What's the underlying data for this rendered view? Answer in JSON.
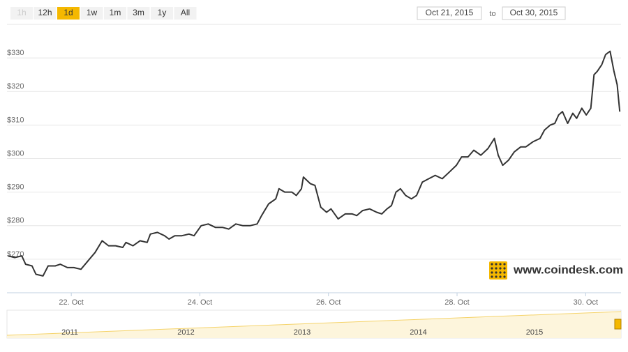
{
  "range_selector": {
    "buttons": [
      "1h",
      "12h",
      "1d",
      "1w",
      "1m",
      "3m",
      "1y",
      "All"
    ],
    "active": "1d",
    "from": "Oct 21, 2015",
    "to_label": "to",
    "to": "Oct 30, 2015"
  },
  "watermark": "www.coindesk.com",
  "navigator": {
    "labels": [
      "2011",
      "2012",
      "2013",
      "2014",
      "2015"
    ]
  },
  "chart_data": {
    "type": "line",
    "color": "#333333",
    "grid": true,
    "xlim": [
      21,
      30.55
    ],
    "ylim": [
      260,
      340
    ],
    "xticks": [
      {
        "value": 22,
        "label": "22. Oct"
      },
      {
        "value": 24,
        "label": "24. Oct"
      },
      {
        "value": 26,
        "label": "26. Oct"
      },
      {
        "value": 28,
        "label": "28. Oct"
      },
      {
        "value": 30,
        "label": "30. Oct"
      }
    ],
    "yticks": [
      {
        "value": 270,
        "label": "$270"
      },
      {
        "value": 280,
        "label": "$280"
      },
      {
        "value": 290,
        "label": "$290"
      },
      {
        "value": 300,
        "label": "$300"
      },
      {
        "value": 310,
        "label": "$310"
      },
      {
        "value": 320,
        "label": "$320"
      },
      {
        "value": 330,
        "label": "$330"
      }
    ],
    "x": [
      21.02,
      21.12,
      21.23,
      21.29,
      21.39,
      21.45,
      21.56,
      21.64,
      21.75,
      21.83,
      21.94,
      22.04,
      22.15,
      22.26,
      22.37,
      22.48,
      22.58,
      22.69,
      22.8,
      22.85,
      22.96,
      23.07,
      23.18,
      23.23,
      23.34,
      23.45,
      23.52,
      23.61,
      23.72,
      23.83,
      23.91,
      24.02,
      24.13,
      24.24,
      24.35,
      24.45,
      24.56,
      24.67,
      24.78,
      24.89,
      24.96,
      25.07,
      25.18,
      25.23,
      25.32,
      25.43,
      25.5,
      25.58,
      25.61,
      25.72,
      25.79,
      25.88,
      25.97,
      26.04,
      26.15,
      26.26,
      26.37,
      26.44,
      26.53,
      26.64,
      26.75,
      26.83,
      26.91,
      26.98,
      27.05,
      27.12,
      27.2,
      27.29,
      27.37,
      27.46,
      27.56,
      27.66,
      27.77,
      27.88,
      27.99,
      28.07,
      28.17,
      28.26,
      28.37,
      28.48,
      28.58,
      28.64,
      28.71,
      28.8,
      28.89,
      28.99,
      29.07,
      29.18,
      29.29,
      29.36,
      29.45,
      29.52,
      29.58,
      29.64,
      29.72,
      29.8,
      29.86,
      29.94,
      30.01,
      30.08,
      30.13,
      30.18,
      30.25,
      30.31,
      30.38,
      30.44,
      30.49,
      30.53
    ],
    "values": [
      271,
      270.5,
      271,
      268.5,
      268,
      265.5,
      265,
      268,
      268,
      268.5,
      267.5,
      267.5,
      267,
      269.5,
      272,
      275.5,
      274,
      274,
      273.5,
      275,
      274,
      275.5,
      275,
      277.5,
      278,
      277,
      276,
      277,
      277,
      277.5,
      277,
      280,
      280.5,
      279.5,
      279.5,
      279,
      280.5,
      280,
      280,
      280.5,
      283,
      286.5,
      288,
      291,
      290,
      290,
      289,
      291,
      294.5,
      292.5,
      292,
      285.5,
      284,
      285,
      282,
      283.5,
      283.5,
      283,
      284.5,
      285,
      284,
      283.5,
      285,
      286,
      290,
      291,
      289,
      288,
      289,
      293,
      294,
      295,
      294,
      296,
      298,
      300.5,
      300.5,
      302.5,
      301,
      303,
      306,
      301,
      298,
      299.5,
      302,
      303.5,
      303.5,
      305,
      306,
      308.5,
      310,
      310.5,
      313,
      314,
      310.5,
      313.5,
      312,
      315,
      313,
      315,
      325,
      326,
      328,
      331,
      332,
      326,
      322,
      314
    ]
  }
}
